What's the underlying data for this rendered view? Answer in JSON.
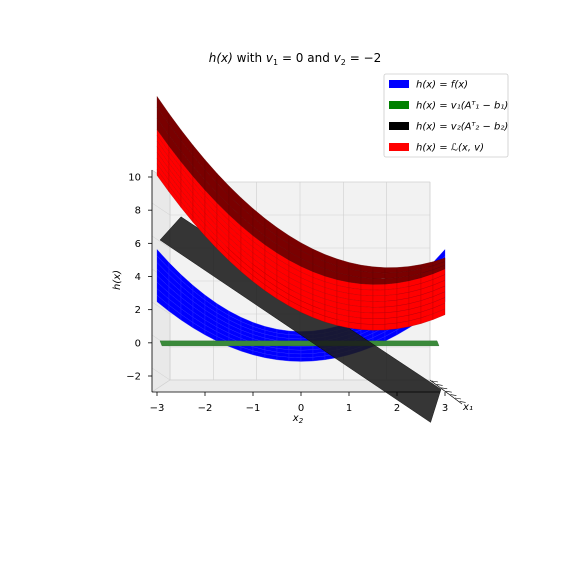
{
  "chart_data": {
    "type": "surface3d",
    "title_parts": {
      "lead": "h(x)",
      "mid": " with ",
      "v1": "v",
      "v1_sub": "1",
      "v1_eq": " = 0",
      "and": " and ",
      "v2": "v",
      "v2_sub": "2",
      "v2_eq": " = −2"
    },
    "xlabel_main": "x",
    "xlabel_sub": "2",
    "ylabel": "h(x)",
    "depth_label": "x₁",
    "x_ticks": [
      "−3",
      "−2",
      "−1",
      "0",
      "1",
      "2",
      "3"
    ],
    "x_tick_values": [
      -3,
      -2,
      -1,
      0,
      1,
      2,
      3
    ],
    "z_ticks": [
      "10",
      "8",
      "6",
      "4",
      "2",
      "0",
      "−2"
    ],
    "z_tick_values": [
      10,
      8,
      6,
      4,
      2,
      0,
      -2
    ],
    "xlim": [
      -3,
      3
    ],
    "zlim": [
      -3,
      10
    ],
    "grid": true,
    "legend_position": "top-right",
    "series": [
      {
        "name": "h(x) = f(x)",
        "color": "#0000ff"
      },
      {
        "name": "h(x) = v₁(Aᵀ₁ − b₁)",
        "color": "#008000"
      },
      {
        "name": "h(x) = v₂(Aᵀ₂ − b₂)",
        "color": "#000000"
      },
      {
        "name": "h(x) = ℒ(x, v)",
        "color": "#ff0000"
      }
    ]
  }
}
